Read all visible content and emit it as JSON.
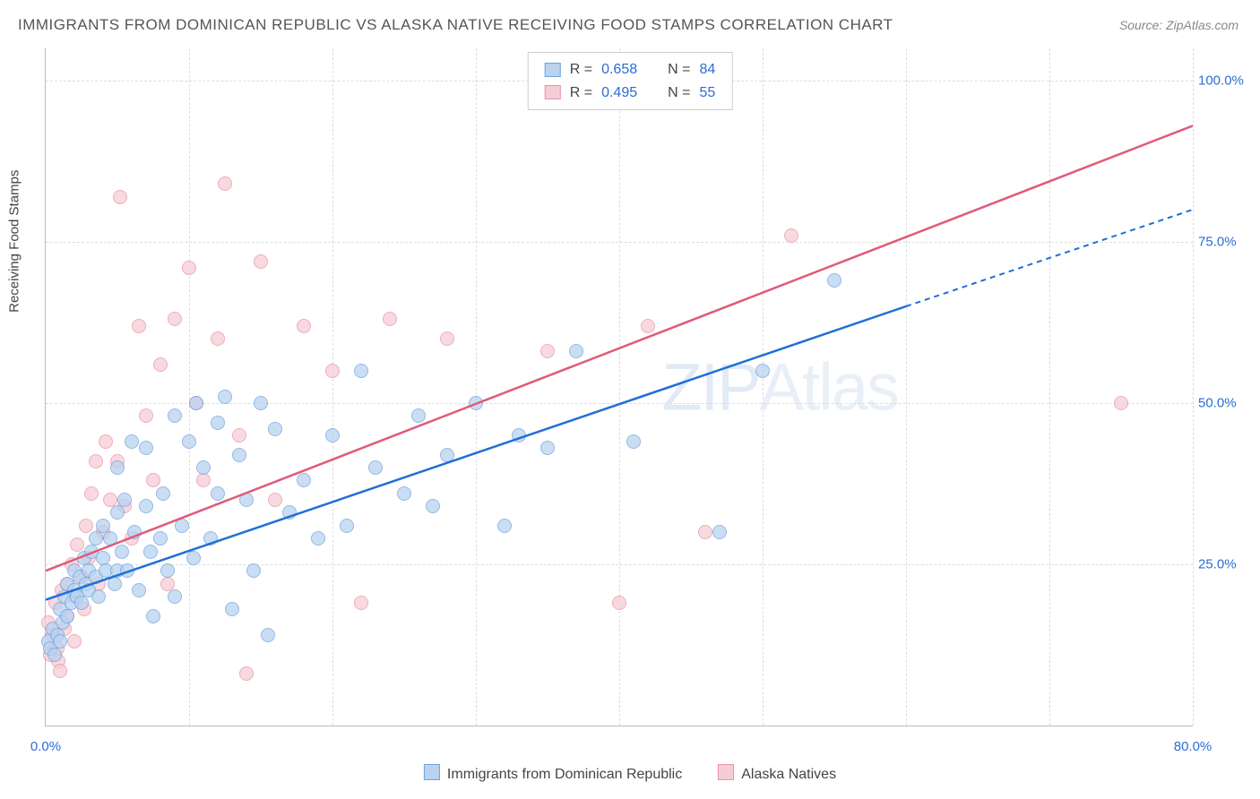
{
  "title": "IMMIGRANTS FROM DOMINICAN REPUBLIC VS ALASKA NATIVE RECEIVING FOOD STAMPS CORRELATION CHART",
  "source": "Source: ZipAtlas.com",
  "watermark": {
    "bold": "ZIP",
    "thin": "Atlas"
  },
  "ylabel": "Receiving Food Stamps",
  "chart": {
    "type": "scatter",
    "xlim": [
      0,
      80
    ],
    "ylim": [
      0,
      105
    ],
    "xticks": [
      0,
      80
    ],
    "xtick_labels": [
      "0.0%",
      "80.0%"
    ],
    "xgrid": [
      10,
      20,
      30,
      40,
      50,
      60,
      70,
      80
    ],
    "yticks": [
      25,
      50,
      75,
      100
    ],
    "ytick_labels": [
      "25.0%",
      "50.0%",
      "75.0%",
      "100.0%"
    ],
    "background_color": "#ffffff",
    "grid_color": "#dddddd",
    "axis_color": "#bbbbbb",
    "tick_label_color": "#2a6dd6",
    "label_fontsize": 15,
    "title_fontsize": 17,
    "marker_size": 16
  },
  "series": [
    {
      "name": "Immigrants from Dominican Republic",
      "abbrev": "blue-series",
      "fill": "#b9d3f0",
      "stroke": "#6fa3de",
      "line_color": "#1f6fd6",
      "R": "0.658",
      "N": "84",
      "trend": {
        "x1": 0,
        "y1": 19.5,
        "x2": 60,
        "y2": 65,
        "ext_x2": 80,
        "ext_y2": 80
      },
      "points": [
        [
          0.2,
          13
        ],
        [
          0.3,
          12
        ],
        [
          0.5,
          15
        ],
        [
          0.6,
          11
        ],
        [
          0.8,
          14
        ],
        [
          1,
          13
        ],
        [
          1,
          18
        ],
        [
          1.2,
          16
        ],
        [
          1.3,
          20
        ],
        [
          1.5,
          17
        ],
        [
          1.5,
          22
        ],
        [
          1.8,
          19
        ],
        [
          2,
          21
        ],
        [
          2,
          24
        ],
        [
          2.2,
          20
        ],
        [
          2.4,
          23
        ],
        [
          2.5,
          19
        ],
        [
          2.7,
          26
        ],
        [
          2.8,
          22
        ],
        [
          3,
          24
        ],
        [
          3,
          21
        ],
        [
          3.2,
          27
        ],
        [
          3.5,
          23
        ],
        [
          3.5,
          29
        ],
        [
          3.7,
          20
        ],
        [
          4,
          26
        ],
        [
          4,
          31
        ],
        [
          4.2,
          24
        ],
        [
          4.5,
          29
        ],
        [
          4.8,
          22
        ],
        [
          5,
          24
        ],
        [
          5,
          33
        ],
        [
          5,
          40
        ],
        [
          5.3,
          27
        ],
        [
          5.5,
          35
        ],
        [
          5.7,
          24
        ],
        [
          6,
          44
        ],
        [
          6.2,
          30
        ],
        [
          6.5,
          21
        ],
        [
          7,
          43
        ],
        [
          7,
          34
        ],
        [
          7.3,
          27
        ],
        [
          7.5,
          17
        ],
        [
          8,
          29
        ],
        [
          8.2,
          36
        ],
        [
          8.5,
          24
        ],
        [
          9,
          48
        ],
        [
          9,
          20
        ],
        [
          9.5,
          31
        ],
        [
          10,
          44
        ],
        [
          10.3,
          26
        ],
        [
          10.5,
          50
        ],
        [
          11,
          40
        ],
        [
          11.5,
          29
        ],
        [
          12,
          47
        ],
        [
          12,
          36
        ],
        [
          12.5,
          51
        ],
        [
          13,
          18
        ],
        [
          13.5,
          42
        ],
        [
          14,
          35
        ],
        [
          14.5,
          24
        ],
        [
          15,
          50
        ],
        [
          15.5,
          14
        ],
        [
          16,
          46
        ],
        [
          17,
          33
        ],
        [
          18,
          38
        ],
        [
          19,
          29
        ],
        [
          20,
          45
        ],
        [
          21,
          31
        ],
        [
          22,
          55
        ],
        [
          23,
          40
        ],
        [
          25,
          36
        ],
        [
          26,
          48
        ],
        [
          27,
          34
        ],
        [
          28,
          42
        ],
        [
          30,
          50
        ],
        [
          32,
          31
        ],
        [
          33,
          45
        ],
        [
          35,
          43
        ],
        [
          37,
          58
        ],
        [
          41,
          44
        ],
        [
          47,
          30
        ],
        [
          55,
          69
        ],
        [
          50,
          55
        ]
      ]
    },
    {
      "name": "Alaska Natives",
      "abbrev": "pink-series",
      "fill": "#f6cdd6",
      "stroke": "#e794a6",
      "line_color": "#e05a78",
      "R": "0.495",
      "N": "55",
      "trend": {
        "x1": 0,
        "y1": 24,
        "x2": 80,
        "y2": 93
      },
      "points": [
        [
          0.2,
          16
        ],
        [
          0.3,
          11
        ],
        [
          0.5,
          14
        ],
        [
          0.7,
          19
        ],
        [
          0.8,
          12
        ],
        [
          0.9,
          10
        ],
        [
          1,
          8.5
        ],
        [
          1.1,
          21
        ],
        [
          1.3,
          15
        ],
        [
          1.5,
          22
        ],
        [
          1.5,
          17
        ],
        [
          1.8,
          25
        ],
        [
          2,
          20
        ],
        [
          2,
          13
        ],
        [
          2.2,
          28
        ],
        [
          2.5,
          23
        ],
        [
          2.7,
          18
        ],
        [
          2.8,
          31
        ],
        [
          3,
          26
        ],
        [
          3.2,
          36
        ],
        [
          3.5,
          41
        ],
        [
          3.7,
          22
        ],
        [
          4,
          30
        ],
        [
          4.2,
          44
        ],
        [
          4.5,
          35
        ],
        [
          5,
          41
        ],
        [
          5.2,
          82
        ],
        [
          5.5,
          34
        ],
        [
          6,
          29
        ],
        [
          6.5,
          62
        ],
        [
          7,
          48
        ],
        [
          7.5,
          38
        ],
        [
          8,
          56
        ],
        [
          8.5,
          22
        ],
        [
          9,
          63
        ],
        [
          10,
          71
        ],
        [
          10.5,
          50
        ],
        [
          11,
          38
        ],
        [
          12,
          60
        ],
        [
          12.5,
          84
        ],
        [
          13.5,
          45
        ],
        [
          14,
          8
        ],
        [
          15,
          72
        ],
        [
          16,
          35
        ],
        [
          18,
          62
        ],
        [
          20,
          55
        ],
        [
          22,
          19
        ],
        [
          24,
          63
        ],
        [
          28,
          60
        ],
        [
          35,
          58
        ],
        [
          40,
          19
        ],
        [
          42,
          62
        ],
        [
          46,
          30
        ],
        [
          52,
          76
        ],
        [
          75,
          50
        ]
      ]
    }
  ],
  "legend_bottom": [
    {
      "swatch_fill": "#b9d3f0",
      "swatch_stroke": "#6fa3de",
      "label": "Immigrants from Dominican Republic"
    },
    {
      "swatch_fill": "#f6cdd6",
      "swatch_stroke": "#e794a6",
      "label": "Alaska Natives"
    }
  ]
}
